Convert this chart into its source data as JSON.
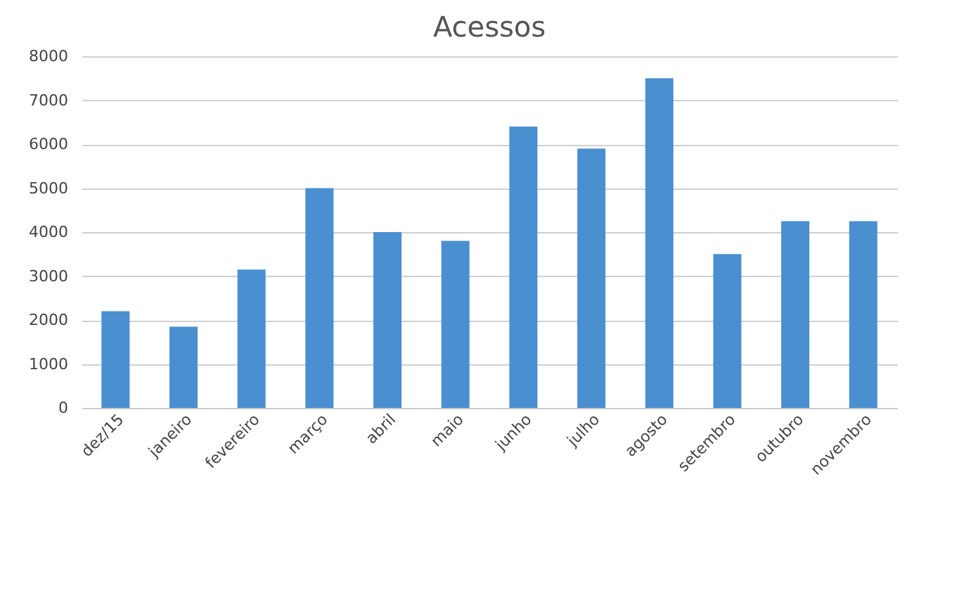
{
  "chart_data": {
    "type": "bar",
    "title": "Acessos",
    "categories": [
      "dez/15",
      "janeiro",
      "fevereiro",
      "março",
      "abril",
      "maio",
      "junho",
      "julho",
      "agosto",
      "setembro",
      "outubro",
      "novembro"
    ],
    "values": [
      2200,
      1850,
      3150,
      5000,
      4000,
      3800,
      6400,
      5900,
      7500,
      3500,
      4250,
      4250
    ],
    "color": "#4a8fd0",
    "ylim": [
      0,
      8000
    ],
    "yticks": [
      0,
      1000,
      2000,
      3000,
      4000,
      5000,
      6000,
      7000,
      8000
    ],
    "grid": "y"
  }
}
